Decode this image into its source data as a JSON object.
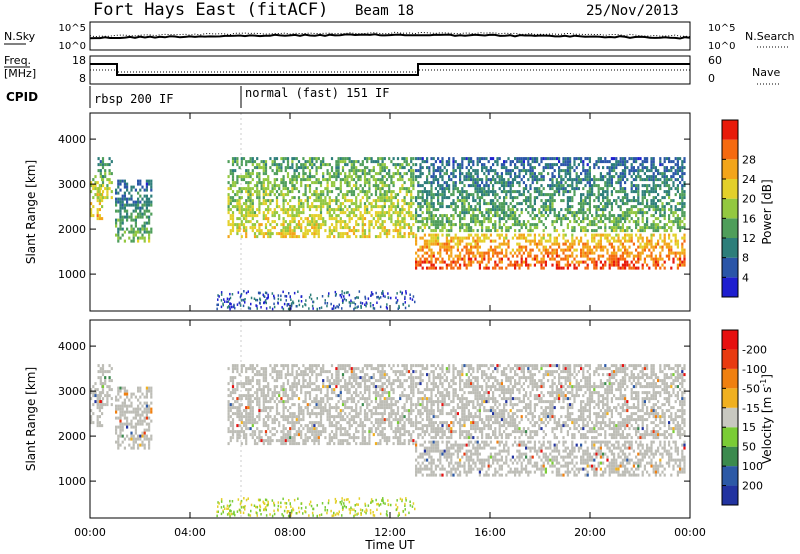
{
  "header": {
    "station": "Fort Hays East (fitACF)",
    "beam": "Beam 18",
    "date": "25/Nov/2013"
  },
  "top_panels": {
    "noise": {
      "left_label": "N.Sky",
      "right_label": "N.Search",
      "left_ticks": [
        "10^5",
        "10^0"
      ],
      "right_ticks": [
        "10^5",
        "10^0"
      ]
    },
    "freq": {
      "left_label_1": "Freq.",
      "left_label_2": "[MHz]",
      "right_label": "Nave",
      "left_ticks": [
        "18",
        "8"
      ],
      "right_ticks": [
        "60",
        "0"
      ]
    },
    "cpid": {
      "label": "CPID",
      "modes": [
        "rbsp 200 IF",
        "normal (fast) 151 IF"
      ]
    }
  },
  "colors": {
    "power_scale": [
      "#1f1fd0",
      "#2a55a8",
      "#2d7e7a",
      "#4f9e5a",
      "#93c840",
      "#e3d02a",
      "#f3a51a",
      "#f56a10",
      "#e81a0a"
    ],
    "velocity_scale": [
      "#2233a0",
      "#2c59a6",
      "#3b8a4e",
      "#7acc35",
      "#c8c8c0",
      "#f0b020",
      "#f08010",
      "#e83a10",
      "#e61010"
    ],
    "ground_scatter": "#bdbdb6"
  },
  "chart_data": [
    {
      "type": "heatmap",
      "name": "power",
      "ylabel": "Slant Range [km]",
      "xlabel": "",
      "xlim": [
        0,
        24
      ],
      "ylim": [
        180,
        4580
      ],
      "y_ticks": [
        1000,
        2000,
        3000,
        4000
      ],
      "colorbar": {
        "label": "Power [dB]",
        "ticks": [
          "4",
          "8",
          "12",
          "16",
          "20",
          "24",
          "28"
        ],
        "range": [
          0,
          32
        ]
      },
      "scatter_regions": [
        {
          "t_start": 0.0,
          "t_end": 0.6,
          "r_low": 2200,
          "r_high": 3200,
          "power": 20
        },
        {
          "t_start": 0.3,
          "t_end": 1.0,
          "r_low": 2600,
          "r_high": 3600,
          "power": 14
        },
        {
          "t_start": 1.0,
          "t_end": 2.5,
          "r_low": 1700,
          "r_high": 3100,
          "power": 10
        },
        {
          "t_start": 5.5,
          "t_end": 13.0,
          "r_low": 1800,
          "r_high": 3600,
          "power": 16
        },
        {
          "t_start": 13.0,
          "t_end": 23.9,
          "r_low": 1050,
          "r_high": 1900,
          "power": 26
        },
        {
          "t_start": 13.0,
          "t_end": 23.9,
          "r_low": 1900,
          "r_high": 3600,
          "power": 10
        }
      ]
    },
    {
      "type": "heatmap",
      "name": "velocity",
      "ylabel": "Slant Range [km]",
      "xlabel": "Time UT",
      "xlim": [
        0,
        24
      ],
      "ylim": [
        180,
        4580
      ],
      "y_ticks": [
        1000,
        2000,
        3000,
        4000
      ],
      "x_ticks": [
        "00:00",
        "04:00",
        "08:00",
        "12:00",
        "16:00",
        "20:00",
        "00:00"
      ],
      "colorbar": {
        "label": "Velocity [m s",
        "label_sup": "-1",
        "label_end": "]",
        "ticks": [
          "200",
          "100",
          "50",
          "15",
          "-15",
          "-50",
          "-100",
          "-200"
        ]
      }
    }
  ]
}
